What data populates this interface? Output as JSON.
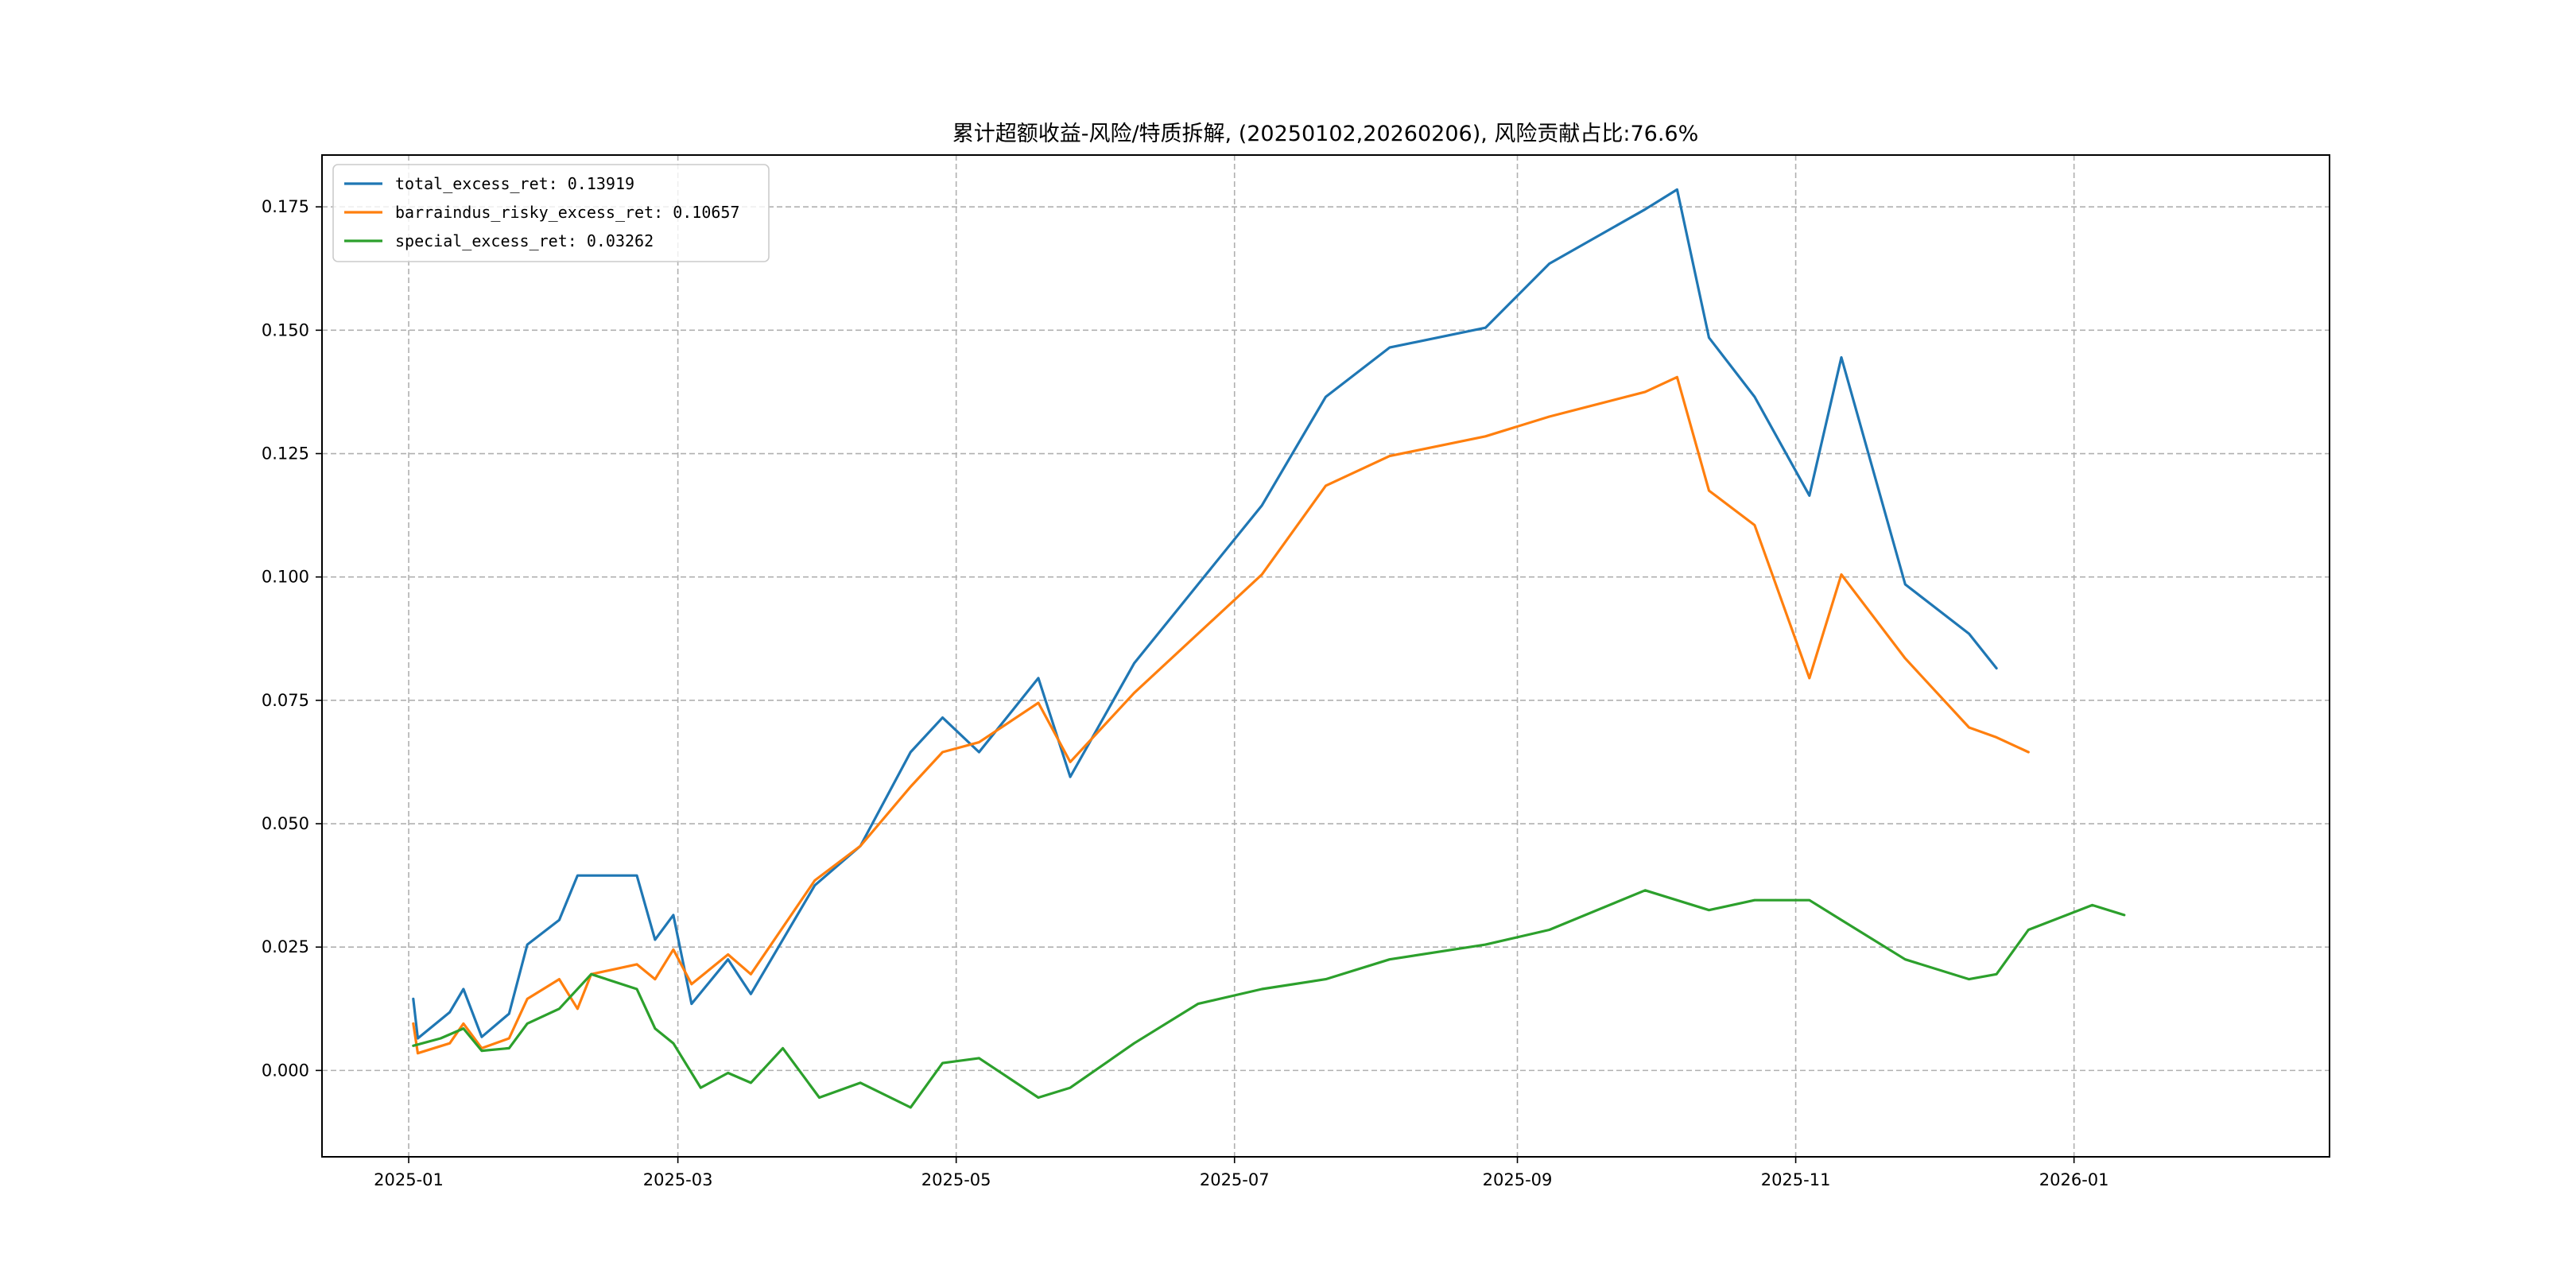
{
  "chart_data": {
    "type": "line",
    "title": "累计超额收益-风险/特质拆解, (20250102,20260206), 风险贡献占比:76.6%",
    "xlabel": "",
    "ylabel": "",
    "x_scale": "time",
    "x_ticks": [
      "2025-01",
      "2025-03",
      "2025-05",
      "2025-07",
      "2025-09",
      "2025-11",
      "2026-01"
    ],
    "y_ticks": [
      "0.000",
      "0.025",
      "0.050",
      "0.075",
      "0.100",
      "0.125",
      "0.150",
      "0.175"
    ],
    "ylim": [
      -0.0175,
      0.1855
    ],
    "xlim": [
      "2024-12-13",
      "2026-02-26"
    ],
    "grid": true,
    "legend_position": "upper left",
    "series": [
      {
        "name": "total_excess_ret",
        "legend_label": "total_excess_ret: 0.13919",
        "color": "#1f77b4",
        "points": [
          [
            "2025-01-02",
            0.0145
          ],
          [
            "2025-01-03",
            0.0065
          ],
          [
            "2025-01-10",
            0.0118
          ],
          [
            "2025-01-13",
            0.0165
          ],
          [
            "2025-01-17",
            0.0068
          ],
          [
            "2025-01-23",
            0.0115
          ],
          [
            "2025-01-27",
            0.0255
          ],
          [
            "2025-02-03",
            0.0305
          ],
          [
            "2025-02-07",
            0.0395
          ],
          [
            "2025-02-10",
            0.0395
          ],
          [
            "2025-02-20",
            0.0395
          ],
          [
            "2025-02-24",
            0.0265
          ],
          [
            "2025-02-28",
            0.0315
          ],
          [
            "2025-03-04",
            0.0135
          ],
          [
            "2025-03-12",
            0.0225
          ],
          [
            "2025-03-17",
            0.0155
          ],
          [
            "2025-03-31",
            0.0375
          ],
          [
            "2025-04-10",
            0.0455
          ],
          [
            "2025-04-21",
            0.0645
          ],
          [
            "2025-04-28",
            0.0715
          ],
          [
            "2025-05-06",
            0.0645
          ],
          [
            "2025-05-19",
            0.0795
          ],
          [
            "2025-05-26",
            0.0595
          ],
          [
            "2025-06-09",
            0.0825
          ],
          [
            "2025-06-23",
            0.0985
          ],
          [
            "2025-07-07",
            0.1145
          ],
          [
            "2025-07-21",
            0.1365
          ],
          [
            "2025-08-04",
            0.1465
          ],
          [
            "2025-08-25",
            0.1505
          ],
          [
            "2025-09-08",
            0.1635
          ],
          [
            "2025-09-29",
            0.1745
          ],
          [
            "2025-10-06",
            0.1785
          ],
          [
            "2025-10-13",
            0.1485
          ],
          [
            "2025-10-23",
            0.1365
          ],
          [
            "2025-11-04",
            0.1165
          ],
          [
            "2025-11-11",
            0.1445
          ],
          [
            "2025-11-25",
            0.0985
          ],
          [
            "2025-12-09",
            0.0885
          ],
          [
            "2025-12-15",
            0.0815
          ]
        ]
      },
      {
        "name": "barraindus_risky_excess_ret",
        "legend_label": "barraindus_risky_excess_ret: 0.10657",
        "color": "#ff7f0e",
        "points": [
          [
            "2025-01-02",
            0.0095
          ],
          [
            "2025-01-03",
            0.0035
          ],
          [
            "2025-01-10",
            0.0055
          ],
          [
            "2025-01-13",
            0.0095
          ],
          [
            "2025-01-17",
            0.0045
          ],
          [
            "2025-01-23",
            0.0065
          ],
          [
            "2025-01-27",
            0.0145
          ],
          [
            "2025-02-03",
            0.0185
          ],
          [
            "2025-02-07",
            0.0125
          ],
          [
            "2025-02-10",
            0.0195
          ],
          [
            "2025-02-20",
            0.0215
          ],
          [
            "2025-02-24",
            0.0185
          ],
          [
            "2025-02-28",
            0.0245
          ],
          [
            "2025-03-04",
            0.0175
          ],
          [
            "2025-03-12",
            0.0235
          ],
          [
            "2025-03-17",
            0.0195
          ],
          [
            "2025-03-31",
            0.0385
          ],
          [
            "2025-04-10",
            0.0455
          ],
          [
            "2025-04-21",
            0.0575
          ],
          [
            "2025-04-28",
            0.0645
          ],
          [
            "2025-05-06",
            0.0665
          ],
          [
            "2025-05-19",
            0.0745
          ],
          [
            "2025-05-26",
            0.0625
          ],
          [
            "2025-06-09",
            0.0765
          ],
          [
            "2025-06-23",
            0.0885
          ],
          [
            "2025-07-07",
            0.1005
          ],
          [
            "2025-07-21",
            0.1185
          ],
          [
            "2025-08-04",
            0.1245
          ],
          [
            "2025-08-25",
            0.1285
          ],
          [
            "2025-09-08",
            0.1325
          ],
          [
            "2025-09-29",
            0.1375
          ],
          [
            "2025-10-06",
            0.1405
          ],
          [
            "2025-10-13",
            0.1175
          ],
          [
            "2025-10-23",
            0.1105
          ],
          [
            "2025-11-04",
            0.0795
          ],
          [
            "2025-11-11",
            0.1005
          ],
          [
            "2025-11-25",
            0.0835
          ],
          [
            "2025-12-09",
            0.0695
          ],
          [
            "2025-12-15",
            0.0675
          ],
          [
            "2025-12-22",
            0.0645
          ]
        ]
      },
      {
        "name": "special_excess_ret",
        "legend_label": "special_excess_ret: 0.03262",
        "color": "#2ca02c",
        "points": [
          [
            "2025-01-02",
            0.005
          ],
          [
            "2025-01-08",
            0.0065
          ],
          [
            "2025-01-13",
            0.0085
          ],
          [
            "2025-01-17",
            0.004
          ],
          [
            "2025-01-23",
            0.0045
          ],
          [
            "2025-01-27",
            0.0095
          ],
          [
            "2025-02-03",
            0.0125
          ],
          [
            "2025-02-10",
            0.0195
          ],
          [
            "2025-02-20",
            0.0165
          ],
          [
            "2025-02-24",
            0.0085
          ],
          [
            "2025-02-28",
            0.0055
          ],
          [
            "2025-03-06",
            -0.0035
          ],
          [
            "2025-03-12",
            -0.0005
          ],
          [
            "2025-03-17",
            -0.0025
          ],
          [
            "2025-03-24",
            0.0045
          ],
          [
            "2025-04-01",
            -0.0055
          ],
          [
            "2025-04-10",
            -0.0025
          ],
          [
            "2025-04-21",
            -0.0075
          ],
          [
            "2025-04-28",
            0.0015
          ],
          [
            "2025-05-06",
            0.0025
          ],
          [
            "2025-05-19",
            -0.0055
          ],
          [
            "2025-05-26",
            -0.0035
          ],
          [
            "2025-06-09",
            0.0055
          ],
          [
            "2025-06-23",
            0.0135
          ],
          [
            "2025-07-07",
            0.0165
          ],
          [
            "2025-07-21",
            0.0185
          ],
          [
            "2025-08-04",
            0.0225
          ],
          [
            "2025-08-25",
            0.0255
          ],
          [
            "2025-09-08",
            0.0285
          ],
          [
            "2025-09-29",
            0.0365
          ],
          [
            "2025-10-13",
            0.0325
          ],
          [
            "2025-10-23",
            0.0345
          ],
          [
            "2025-11-04",
            0.0345
          ],
          [
            "2025-11-11",
            0.0305
          ],
          [
            "2025-11-25",
            0.0225
          ],
          [
            "2025-12-09",
            0.0185
          ],
          [
            "2025-12-15",
            0.0195
          ],
          [
            "2025-12-22",
            0.0285
          ],
          [
            "2026-01-05",
            0.0335
          ],
          [
            "2026-01-12",
            0.0315
          ]
        ]
      }
    ]
  }
}
